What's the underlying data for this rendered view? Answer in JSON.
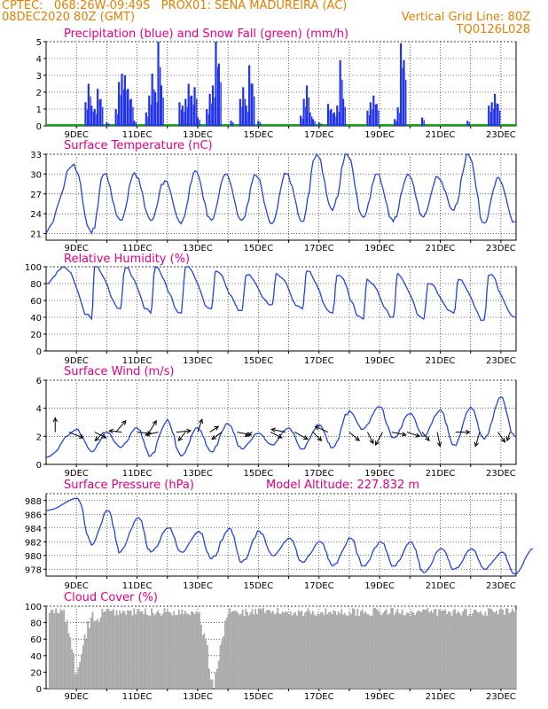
{
  "header": {
    "line1": "CPTEC:   068:26W-09:49S   PROX01: SENA MADUREIRA (AC)",
    "line2": "08DEC2020 80Z (GMT)",
    "line3": "Vertical Grid Line: 80Z",
    "line4": "TQ0126L028"
  },
  "x_labels": [
    "9DEC",
    "11DEC",
    "13DEC",
    "15DEC",
    "17DEC",
    "19DEC",
    "21DEC",
    "23DEC"
  ],
  "colors": {
    "precip": "#2233ee",
    "snow": "#11aa11",
    "line": "#2244dd",
    "cloud": "#aaaaaa",
    "title": "#e0008a",
    "header": "#e08000",
    "arrow": "#000000"
  },
  "chart_data": [
    {
      "type": "bar",
      "title": "Precipitation (blue) and Snow Fall (green) (mm/h)",
      "ylim": [
        0,
        5
      ],
      "yticks": [
        0,
        1,
        2,
        3,
        4,
        5
      ],
      "x_range_days": [
        8,
        23.5
      ],
      "series": [
        {
          "name": "precipitation",
          "points": [
            [
              9.3,
              1.4
            ],
            [
              9.4,
              2.5
            ],
            [
              9.5,
              1.2
            ],
            [
              9.6,
              1.0
            ],
            [
              9.7,
              2.2
            ],
            [
              9.8,
              1.6
            ],
            [
              10.0,
              0.2
            ],
            [
              10.3,
              1.0
            ],
            [
              10.4,
              2.6
            ],
            [
              10.5,
              3.1
            ],
            [
              10.6,
              3.0
            ],
            [
              10.7,
              2.2
            ],
            [
              10.8,
              1.6
            ],
            [
              10.9,
              0.3
            ],
            [
              11.3,
              0.8
            ],
            [
              11.4,
              1.8
            ],
            [
              11.5,
              3.1
            ],
            [
              11.6,
              2.0
            ],
            [
              11.7,
              5.0
            ],
            [
              11.8,
              2.4
            ],
            [
              12.4,
              1.4
            ],
            [
              12.5,
              1.2
            ],
            [
              12.6,
              1.6
            ],
            [
              12.7,
              2.5
            ],
            [
              12.8,
              1.8
            ],
            [
              12.9,
              2.3
            ],
            [
              13.0,
              0.5
            ],
            [
              13.3,
              1.0
            ],
            [
              13.4,
              1.9
            ],
            [
              13.5,
              2.4
            ],
            [
              13.6,
              5.0
            ],
            [
              13.7,
              3.7
            ],
            [
              14.1,
              0.3
            ],
            [
              14.4,
              1.6
            ],
            [
              14.5,
              2.3
            ],
            [
              14.6,
              1.2
            ],
            [
              14.7,
              3.6
            ],
            [
              14.8,
              2.5
            ],
            [
              15.0,
              0.3
            ],
            [
              16.4,
              0.6
            ],
            [
              16.5,
              1.6
            ],
            [
              16.6,
              2.4
            ],
            [
              16.7,
              0.8
            ],
            [
              16.8,
              0.4
            ],
            [
              17.0,
              0.2
            ],
            [
              17.3,
              1.3
            ],
            [
              17.4,
              1.0
            ],
            [
              17.5,
              0.8
            ],
            [
              17.6,
              1.2
            ],
            [
              17.7,
              3.9
            ],
            [
              17.8,
              1.6
            ],
            [
              18.6,
              0.9
            ],
            [
              18.7,
              1.4
            ],
            [
              18.8,
              1.8
            ],
            [
              18.9,
              1.3
            ],
            [
              19.5,
              0.4
            ],
            [
              19.6,
              1.1
            ],
            [
              19.7,
              4.9
            ],
            [
              19.8,
              3.9
            ],
            [
              20.4,
              0.5
            ],
            [
              21.9,
              0.3
            ],
            [
              22.6,
              1.2
            ],
            [
              22.7,
              1.4
            ],
            [
              22.8,
              1.9
            ],
            [
              22.9,
              1.3
            ]
          ]
        },
        {
          "name": "snow",
          "points": []
        }
      ]
    },
    {
      "type": "line",
      "title": "Surface Temperature (nC)",
      "ylim": [
        20,
        33
      ],
      "yticks": [
        21,
        24,
        27,
        30,
        33
      ],
      "x_range_days": [
        8,
        23.5
      ],
      "min": [
        21,
        21,
        23,
        23,
        22.5,
        23,
        23,
        22.5,
        22.8,
        24.5,
        23.5,
        22.8,
        23.5,
        24.5,
        22.6,
        22.8
      ],
      "max": [
        31.5,
        30,
        30.2,
        29,
        30.5,
        30,
        29.8,
        30,
        33.3,
        33.3,
        30,
        30,
        29.5,
        33,
        29.5
      ],
      "max_pos": 0.42
    },
    {
      "type": "line",
      "title": "Relative Humidity (%)",
      "ylim": [
        0,
        100
      ],
      "yticks": [
        0,
        20,
        40,
        60,
        80,
        100
      ],
      "x_range_days": [
        8,
        23.5
      ],
      "min": [
        80,
        38,
        50,
        45,
        45,
        50,
        48,
        55,
        50,
        45,
        38,
        40,
        38,
        45,
        37,
        40
      ],
      "max": [
        100,
        100,
        98,
        100,
        100,
        95,
        90,
        92,
        95,
        90,
        85,
        92,
        80,
        85,
        90
      ],
      "max_pos": 0.1
    },
    {
      "type": "line",
      "title": "Surface Wind (m/s)",
      "ylim": [
        0,
        6
      ],
      "yticks": [
        0,
        2,
        4,
        6
      ],
      "x_range_days": [
        8,
        23.5
      ],
      "min": [
        0.5,
        0.9,
        1.2,
        0.6,
        0.6,
        0.9,
        1.1,
        1.4,
        1.1,
        1.2,
        2.5,
        1.9,
        2.0,
        1.4,
        1.8,
        2.0
      ],
      "max": [
        2.5,
        2.3,
        2.6,
        3.2,
        2.6,
        2.9,
        2.2,
        2.6,
        2.8,
        3.8,
        4.1,
        3.6,
        3.9,
        4.1,
        4.8
      ],
      "max_pos": 0.5,
      "vectors": [
        [
          8.3,
          0,
          1
        ],
        [
          8.75,
          1,
          -0.4
        ],
        [
          9.6,
          0.8,
          -0.4
        ],
        [
          9.9,
          -0.6,
          -0.6
        ],
        [
          10.3,
          0.7,
          0.8
        ],
        [
          10.5,
          -0.9,
          0.1
        ],
        [
          11.0,
          1,
          -0.1
        ],
        [
          11.4,
          0.5,
          0.8
        ],
        [
          11.7,
          -0.9,
          -0.2
        ],
        [
          12.3,
          1,
          0.1
        ],
        [
          12.6,
          -0.5,
          -0.6
        ],
        [
          13.0,
          0.3,
          0.9
        ],
        [
          13.4,
          0.6,
          0.4
        ],
        [
          13.8,
          -0.7,
          -0.5
        ],
        [
          14.3,
          1,
          -0.2
        ],
        [
          14.8,
          -0.5,
          -0.3
        ],
        [
          15.4,
          0.8,
          -0.4
        ],
        [
          15.9,
          -1,
          0.2
        ],
        [
          16.2,
          0.9,
          -0.5
        ],
        [
          16.8,
          0.6,
          -0.6
        ],
        [
          17.3,
          -0.9,
          0.4
        ],
        [
          18.0,
          0.7,
          -0.6
        ],
        [
          18.6,
          0.4,
          -0.8
        ],
        [
          19.1,
          -0.5,
          -0.9
        ],
        [
          19.4,
          1,
          -0.2
        ],
        [
          19.9,
          0.9,
          -0.3
        ],
        [
          20.4,
          0.5,
          -0.6
        ],
        [
          20.9,
          0.2,
          -1
        ],
        [
          21.5,
          1,
          0
        ],
        [
          22.3,
          -0.3,
          -1
        ],
        [
          22.9,
          0.5,
          -0.7
        ],
        [
          23.3,
          -0.2,
          -0.6
        ]
      ]
    },
    {
      "type": "line",
      "title": "Surface Pressure (hPa)",
      "annotation": "Model Altitude: 227.832 m",
      "ylim": [
        977,
        989
      ],
      "yticks": [
        978,
        980,
        982,
        984,
        986,
        988
      ],
      "x_range_days": [
        8,
        23.5
      ],
      "min": [
        986.5,
        981.5,
        980.5,
        980.5,
        980.5,
        979.5,
        979,
        980,
        979,
        978.5,
        978.5,
        978.5,
        977.5,
        978,
        978,
        977.3
      ],
      "max": [
        988.3,
        986.5,
        985.5,
        984,
        983.5,
        984,
        983.5,
        982.5,
        982,
        982.5,
        982,
        982,
        981,
        981,
        980.5,
        981
      ],
      "max_pos": 0.55
    },
    {
      "type": "bar",
      "title": "Cloud Cover (%)",
      "ylim": [
        0,
        100
      ],
      "yticks": [
        0,
        20,
        40,
        60,
        80,
        100
      ],
      "x_range_days": [
        8,
        23.5
      ],
      "dips": [
        [
          9.0,
          13
        ],
        [
          13.5,
          0
        ]
      ]
    }
  ]
}
